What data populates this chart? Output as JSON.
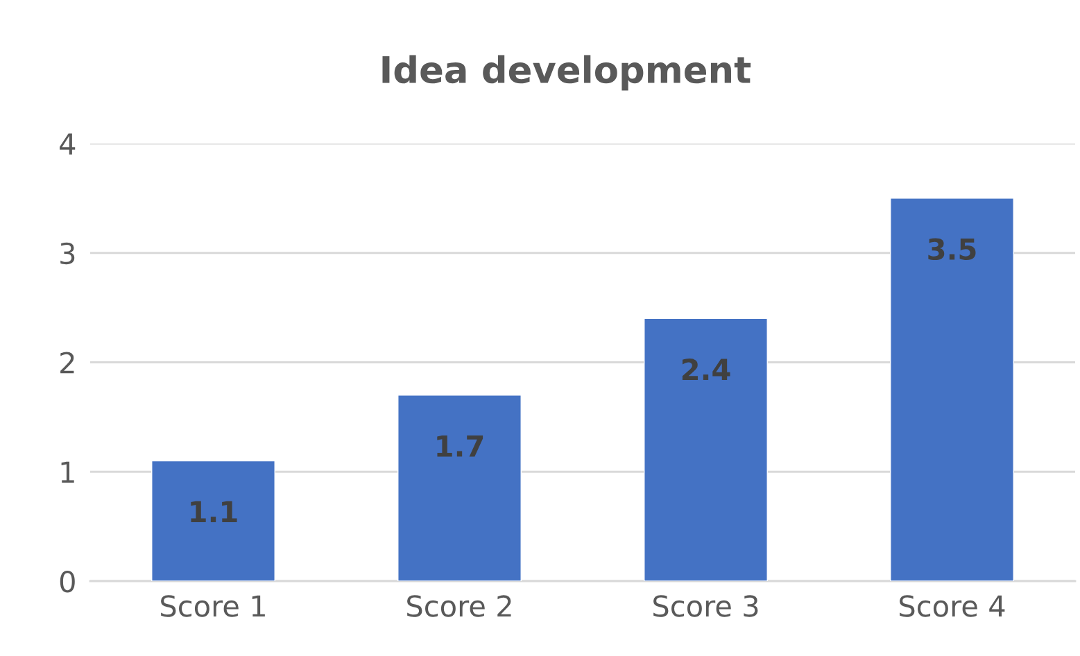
{
  "chart_data": {
    "type": "bar",
    "title": "Idea development",
    "categories": [
      "Score 1",
      "Score 2",
      "Score 3",
      "Score 4"
    ],
    "values": [
      1.1,
      1.7,
      2.4,
      3.5
    ],
    "color": "#4472c4",
    "ylim": [
      0,
      4
    ],
    "yticks": [
      0,
      1,
      2,
      3,
      4
    ],
    "grid": "y",
    "data_labels": true
  }
}
